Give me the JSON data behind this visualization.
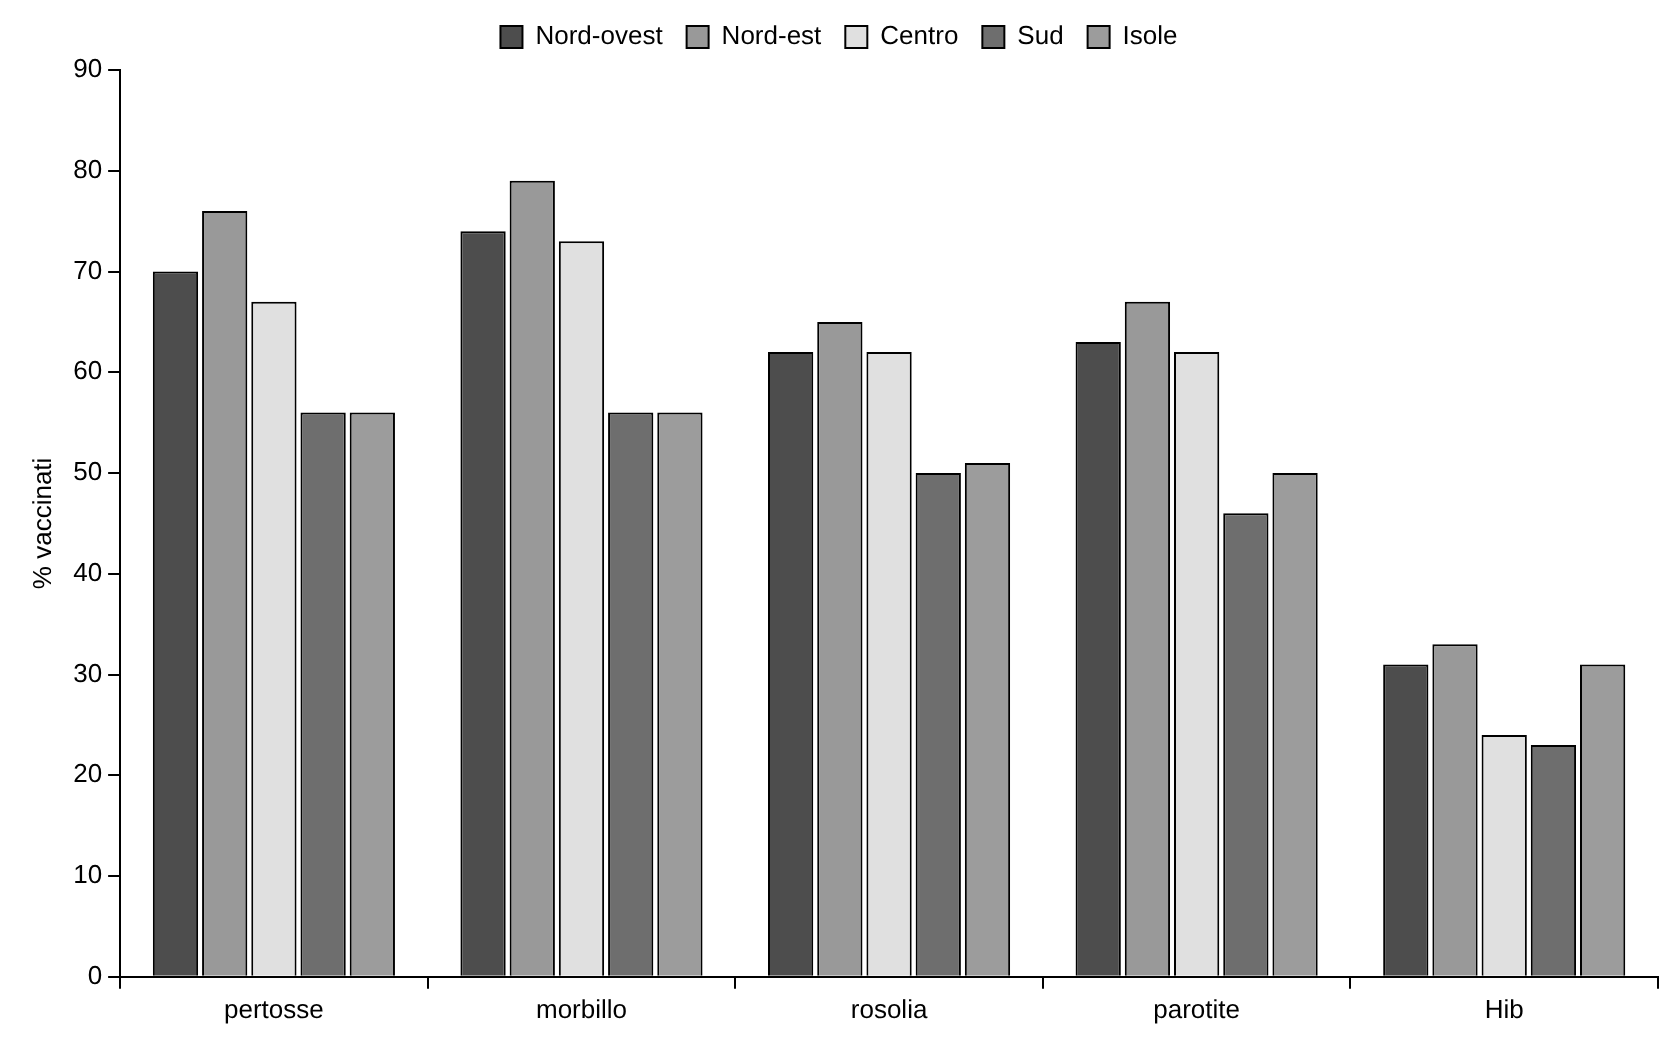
{
  "chart_data": {
    "type": "bar",
    "ylabel": "% vaccinati",
    "categories": [
      "pertosse",
      "morbillo",
      "rosolia",
      "parotite",
      "Hib"
    ],
    "series": [
      {
        "name": "Nord-ovest",
        "color": "#4d4d4d",
        "values": [
          70,
          74,
          62,
          63,
          31
        ]
      },
      {
        "name": "Nord-est",
        "color": "#999999",
        "values": [
          76,
          79,
          65,
          67,
          33
        ]
      },
      {
        "name": "Centro",
        "color": "#e0e0e0",
        "values": [
          67,
          73,
          62,
          62,
          24
        ]
      },
      {
        "name": "Sud",
        "color": "#6e6e6e",
        "values": [
          56,
          56,
          50,
          46,
          23
        ]
      },
      {
        "name": "Isole",
        "color": "#9c9c9c",
        "values": [
          56,
          56,
          51,
          50,
          31
        ]
      }
    ],
    "ylim": [
      0,
      90
    ],
    "yticks": [
      0,
      10,
      20,
      30,
      40,
      50,
      60,
      70,
      80,
      90
    ],
    "grid": false,
    "legend": "top"
  }
}
